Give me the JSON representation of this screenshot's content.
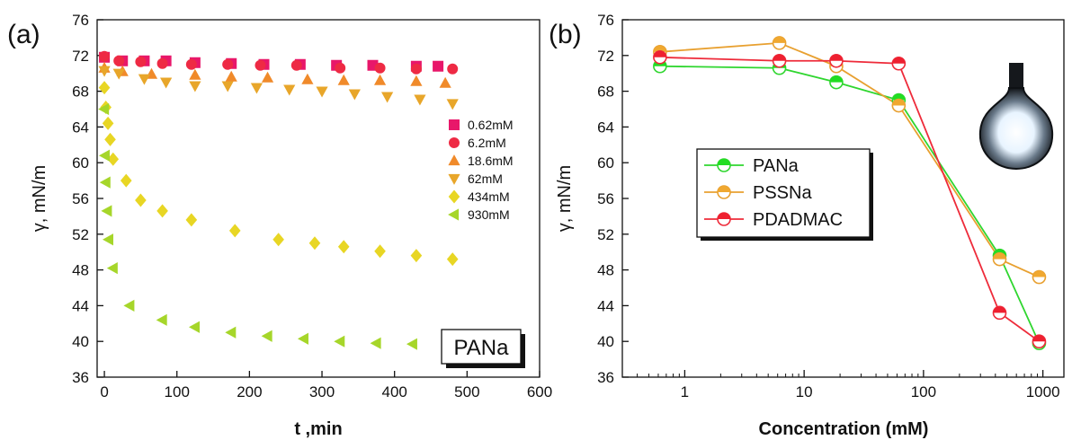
{
  "chart_data": [
    {
      "panel_label": "(a)",
      "type": "scatter",
      "xlabel": "t ,min",
      "ylabel": "γ, mN/m",
      "xlim": [
        -10,
        600
      ],
      "ylim": [
        36,
        76
      ],
      "xticks": [
        0,
        100,
        200,
        300,
        400,
        500,
        600
      ],
      "yticks": [
        36,
        40,
        44,
        48,
        52,
        56,
        60,
        64,
        68,
        72,
        76
      ],
      "inset_label": "PANa",
      "legend_position": "right-middle",
      "series": [
        {
          "name": "0.62mM",
          "marker": "square",
          "color": "#e8176a",
          "x": [
            0,
            25,
            55,
            85,
            125,
            175,
            220,
            270,
            320,
            370,
            430,
            460
          ],
          "y": [
            71.8,
            71.4,
            71.4,
            71.4,
            71.2,
            71.1,
            71.0,
            71.0,
            70.9,
            70.9,
            70.8,
            70.8
          ]
        },
        {
          "name": "6.2mM",
          "marker": "circle",
          "color": "#ee2a44",
          "x": [
            0,
            20,
            50,
            80,
            120,
            170,
            215,
            265,
            325,
            380,
            430,
            480
          ],
          "y": [
            71.9,
            71.4,
            71.3,
            71.1,
            71.0,
            71.0,
            70.9,
            70.9,
            70.6,
            70.6,
            70.5,
            70.5
          ]
        },
        {
          "name": "18.6mM",
          "marker": "triangle-up",
          "color": "#f08a2a",
          "x": [
            0,
            25,
            65,
            125,
            175,
            225,
            280,
            330,
            380,
            430,
            470
          ],
          "y": [
            70.6,
            70.2,
            69.9,
            69.8,
            69.6,
            69.5,
            69.3,
            69.2,
            69.2,
            69.1,
            68.9
          ]
        },
        {
          "name": "62mM",
          "marker": "triangle-down",
          "color": "#e8a62a",
          "x": [
            0,
            20,
            55,
            85,
            125,
            170,
            210,
            255,
            300,
            345,
            390,
            435,
            480
          ],
          "y": [
            70.3,
            70.0,
            69.4,
            69.0,
            68.6,
            68.6,
            68.4,
            68.2,
            68.0,
            67.7,
            67.4,
            67.1,
            66.6
          ]
        },
        {
          "name": "434mM",
          "marker": "diamond",
          "color": "#e8d624",
          "x": [
            0,
            2,
            5,
            8,
            12,
            30,
            50,
            80,
            120,
            180,
            240,
            290,
            330,
            380,
            430,
            480
          ],
          "y": [
            68.4,
            66.2,
            64.4,
            62.6,
            60.4,
            58.0,
            55.8,
            54.6,
            53.6,
            52.4,
            51.4,
            51.0,
            50.6,
            50.1,
            49.6,
            49.2
          ]
        },
        {
          "name": "930mM",
          "marker": "triangle-left",
          "color": "#a6d62a",
          "x": [
            0,
            1,
            2,
            4,
            6,
            12,
            35,
            80,
            125,
            175,
            225,
            275,
            325,
            375,
            425
          ],
          "y": [
            66.0,
            60.8,
            57.8,
            54.6,
            51.4,
            48.2,
            44.0,
            42.4,
            41.6,
            41.0,
            40.6,
            40.3,
            40.0,
            39.8,
            39.7
          ]
        }
      ]
    },
    {
      "panel_label": "(b)",
      "type": "line",
      "xscale": "log",
      "xlabel": "Concentration (mM)",
      "ylabel": "γ, mN/m",
      "xlim": [
        0.3,
        1500
      ],
      "ylim": [
        36,
        76
      ],
      "xticks": [
        1,
        10,
        100,
        1000
      ],
      "yticks": [
        36,
        40,
        44,
        48,
        52,
        56,
        60,
        64,
        68,
        72,
        76
      ],
      "legend_position": "left-middle",
      "series": [
        {
          "name": "PANa",
          "color": "#2fd62f",
          "fill": "#22dd22",
          "x": [
            0.62,
            6.2,
            18.6,
            62,
            434,
            930
          ],
          "y": [
            70.8,
            70.6,
            69.0,
            67.0,
            49.6,
            39.8
          ]
        },
        {
          "name": "PSSNa",
          "color": "#e8a030",
          "fill": "#f0a830",
          "x": [
            0.62,
            6.2,
            18.6,
            62,
            434,
            930
          ],
          "y": [
            72.4,
            73.4,
            70.8,
            66.4,
            49.2,
            47.2
          ]
        },
        {
          "name": "PDADMAC",
          "color": "#ee2b3a",
          "fill": "#ee2030",
          "x": [
            0.62,
            6.2,
            18.6,
            62,
            434,
            930
          ],
          "y": [
            71.8,
            71.4,
            71.4,
            71.1,
            43.2,
            40.0
          ]
        }
      ]
    }
  ]
}
